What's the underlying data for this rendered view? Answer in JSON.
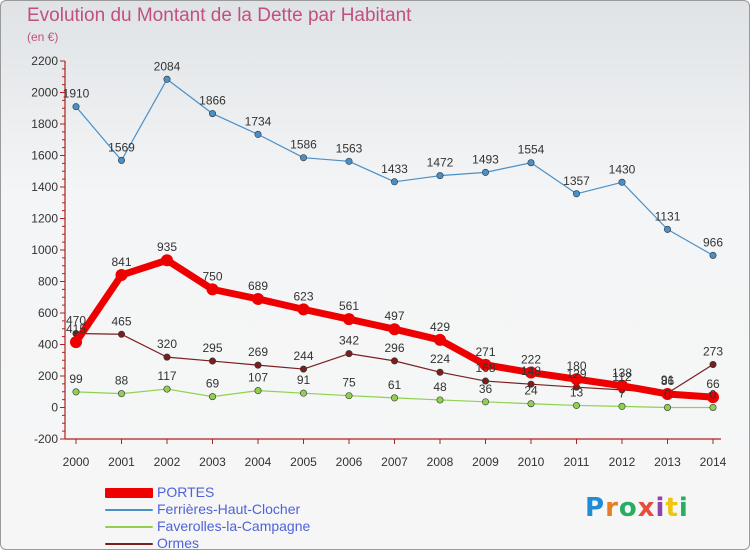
{
  "title": "Evolution du Montant de la Dette par Habitant",
  "unit_label": "(en €)",
  "logo": {
    "text": "Proxiti",
    "letters": [
      {
        "ch": "P",
        "color": "#1f8dd6"
      },
      {
        "ch": "r",
        "color": "#e67e22"
      },
      {
        "ch": "o",
        "color": "#27ae60"
      },
      {
        "ch": "x",
        "color": "#e74c3c"
      },
      {
        "ch": "i",
        "color": "#8e44ad"
      },
      {
        "ch": "t",
        "color": "#f1c40f"
      },
      {
        "ch": "i",
        "color": "#27ae60"
      }
    ]
  },
  "chart_data": {
    "type": "line",
    "title": "Evolution du Montant de la Dette par Habitant",
    "ylabel": "(en €)",
    "xlabel": "",
    "x": [
      2000,
      2001,
      2002,
      2003,
      2004,
      2005,
      2006,
      2007,
      2008,
      2009,
      2010,
      2011,
      2012,
      2013,
      2014
    ],
    "ylim": [
      -200,
      2200
    ],
    "yticks": [
      -200,
      0,
      200,
      400,
      600,
      800,
      1000,
      1200,
      1400,
      1600,
      1800,
      2000,
      2200
    ],
    "grid": false,
    "legend_position": "bottom-left",
    "series": [
      {
        "name": "PORTES",
        "color": "#ee0000",
        "values": [
          415,
          841,
          935,
          750,
          689,
          623,
          561,
          497,
          429,
          271,
          222,
          180,
          138,
          86,
          66
        ]
      },
      {
        "name": "Ferrières-Haut-Clocher",
        "color": "#4a90c8",
        "values": [
          1910,
          1569,
          2084,
          1866,
          1734,
          1586,
          1563,
          1433,
          1472,
          1493,
          1554,
          1357,
          1430,
          1131,
          966
        ]
      },
      {
        "name": "Faverolles-la-Campagne",
        "color": "#8fd14f",
        "values": [
          99,
          88,
          117,
          69,
          107,
          91,
          75,
          61,
          48,
          36,
          24,
          13,
          7,
          0,
          0
        ]
      },
      {
        "name": "Ormes",
        "color": "#7a1f1f",
        "values": [
          470,
          465,
          320,
          295,
          269,
          244,
          342,
          296,
          224,
          168,
          148,
          129,
          112,
          91,
          273
        ]
      }
    ],
    "data_labels": [
      [
        "415",
        "841",
        "935",
        "750",
        "689",
        "623",
        "561",
        "497",
        "429",
        "271",
        "222",
        "180",
        "138",
        "86",
        "66"
      ],
      [
        "1910",
        "1569",
        "2084",
        "1866",
        "1734",
        "1586",
        "1563",
        "1433",
        "1472",
        "1493",
        "1554",
        "1357",
        "1430",
        "1131",
        "966"
      ],
      [
        "99",
        "88",
        "117",
        "69",
        "107",
        "91",
        "75",
        "61",
        "48",
        "36",
        "24",
        "13",
        "7",
        "0",
        "0"
      ],
      [
        "470",
        "465",
        "320",
        "295",
        "269",
        "244",
        "342",
        "296",
        "224",
        "168",
        "148",
        "129",
        "112",
        "91",
        "273"
      ]
    ]
  }
}
